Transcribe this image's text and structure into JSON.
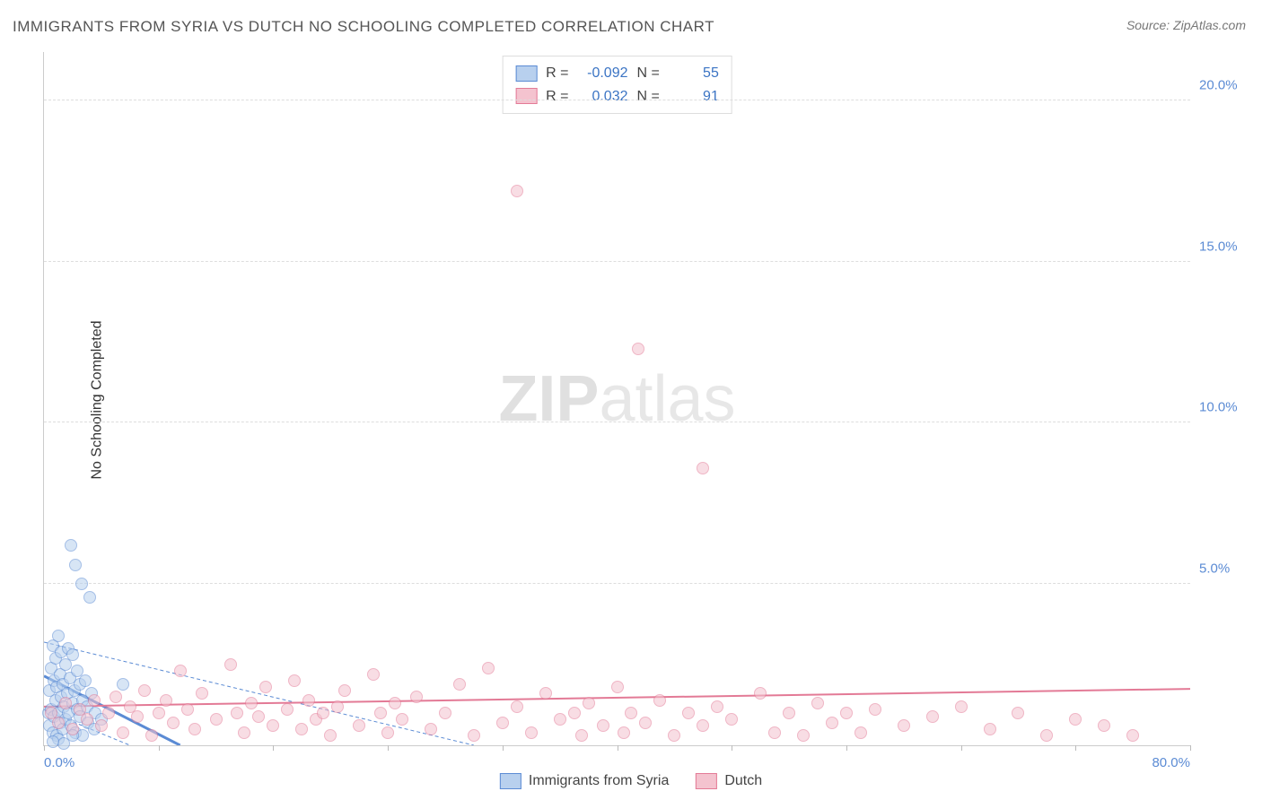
{
  "title": "IMMIGRANTS FROM SYRIA VS DUTCH NO SCHOOLING COMPLETED CORRELATION CHART",
  "source": "Source: ZipAtlas.com",
  "ylabel": "No Schooling Completed",
  "watermark_bold": "ZIP",
  "watermark_rest": "atlas",
  "chart": {
    "type": "scatter",
    "background_color": "#ffffff",
    "grid_color": "#dddddd",
    "axis_color": "#cccccc",
    "tick_label_color": "#5b8bd4",
    "xlim": [
      0,
      80
    ],
    "ylim": [
      0,
      21.5
    ],
    "yticks": [
      {
        "v": 5.0,
        "label": "5.0%"
      },
      {
        "v": 10.0,
        "label": "10.0%"
      },
      {
        "v": 15.0,
        "label": "15.0%"
      },
      {
        "v": 20.0,
        "label": "20.0%"
      }
    ],
    "xticks": [
      {
        "v": 0.0,
        "label": "0.0%"
      },
      {
        "v": 8.0,
        "label": ""
      },
      {
        "v": 16.0,
        "label": ""
      },
      {
        "v": 24.0,
        "label": ""
      },
      {
        "v": 32.0,
        "label": ""
      },
      {
        "v": 40.0,
        "label": ""
      },
      {
        "v": 48.0,
        "label": ""
      },
      {
        "v": 56.0,
        "label": ""
      },
      {
        "v": 64.0,
        "label": ""
      },
      {
        "v": 72.0,
        "label": ""
      },
      {
        "v": 80.0,
        "label": "80.0%"
      }
    ],
    "marker_radius": 7,
    "series": [
      {
        "name": "Immigrants from Syria",
        "fill": "#b8d0ee",
        "stroke": "#5b8bd4",
        "fill_opacity": 0.55,
        "trend": {
          "y_at_x0": 2.15,
          "y_at_xmax": 0.0,
          "x_end": 9.5,
          "width": 3
        },
        "ci_upper": {
          "y_at_x0": 3.2,
          "y_at_xmax": 0.0,
          "x_end": 30
        },
        "ci_lower": {
          "y_at_x0": 1.1,
          "y_at_xmax": 0.0,
          "x_end": 6
        },
        "points": [
          [
            0.3,
            1.0
          ],
          [
            0.4,
            1.7
          ],
          [
            0.4,
            0.6
          ],
          [
            0.5,
            2.4
          ],
          [
            0.5,
            1.1
          ],
          [
            0.6,
            3.1
          ],
          [
            0.6,
            0.4
          ],
          [
            0.7,
            2.0
          ],
          [
            0.7,
            0.9
          ],
          [
            0.8,
            1.4
          ],
          [
            0.8,
            2.7
          ],
          [
            0.9,
            0.3
          ],
          [
            0.9,
            1.8
          ],
          [
            1.0,
            1.0
          ],
          [
            1.0,
            3.4
          ],
          [
            1.1,
            2.2
          ],
          [
            1.1,
            0.7
          ],
          [
            1.2,
            1.5
          ],
          [
            1.2,
            2.9
          ],
          [
            1.3,
            0.5
          ],
          [
            1.3,
            1.9
          ],
          [
            1.4,
            1.2
          ],
          [
            1.5,
            2.5
          ],
          [
            1.5,
            0.8
          ],
          [
            1.6,
            1.6
          ],
          [
            1.7,
            3.0
          ],
          [
            1.7,
            1.0
          ],
          [
            1.8,
            2.1
          ],
          [
            1.9,
            0.6
          ],
          [
            2.0,
            1.3
          ],
          [
            2.0,
            2.8
          ],
          [
            2.1,
            1.7
          ],
          [
            2.2,
            0.4
          ],
          [
            2.3,
            2.3
          ],
          [
            2.3,
            1.1
          ],
          [
            2.5,
            0.9
          ],
          [
            2.5,
            1.9
          ],
          [
            2.7,
            1.4
          ],
          [
            2.7,
            0.3
          ],
          [
            2.9,
            2.0
          ],
          [
            3.0,
            1.2
          ],
          [
            3.1,
            0.7
          ],
          [
            3.3,
            1.6
          ],
          [
            3.5,
            0.5
          ],
          [
            3.6,
            1.0
          ],
          [
            4.0,
            0.8
          ],
          [
            1.9,
            6.2
          ],
          [
            2.2,
            5.6
          ],
          [
            2.6,
            5.0
          ],
          [
            3.2,
            4.6
          ],
          [
            1.0,
            0.2
          ],
          [
            1.4,
            0.05
          ],
          [
            0.6,
            0.1
          ],
          [
            2.0,
            0.3
          ],
          [
            5.5,
            1.9
          ]
        ]
      },
      {
        "name": "Dutch",
        "fill": "#f4c3cf",
        "stroke": "#e37a96",
        "fill_opacity": 0.55,
        "trend": {
          "y_at_x0": 1.2,
          "y_at_xmax": 1.75,
          "x_end": 80,
          "width": 2
        },
        "points": [
          [
            0.5,
            1.0
          ],
          [
            1.0,
            0.7
          ],
          [
            1.5,
            1.3
          ],
          [
            2.0,
            0.5
          ],
          [
            2.5,
            1.1
          ],
          [
            3.0,
            0.8
          ],
          [
            3.5,
            1.4
          ],
          [
            4.0,
            0.6
          ],
          [
            4.5,
            1.0
          ],
          [
            5.0,
            1.5
          ],
          [
            5.5,
            0.4
          ],
          [
            6.0,
            1.2
          ],
          [
            6.5,
            0.9
          ],
          [
            7.0,
            1.7
          ],
          [
            7.5,
            0.3
          ],
          [
            8.0,
            1.0
          ],
          [
            8.5,
            1.4
          ],
          [
            9.0,
            0.7
          ],
          [
            9.5,
            2.3
          ],
          [
            10.0,
            1.1
          ],
          [
            10.5,
            0.5
          ],
          [
            11.0,
            1.6
          ],
          [
            12.0,
            0.8
          ],
          [
            13.0,
            2.5
          ],
          [
            13.5,
            1.0
          ],
          [
            14.0,
            0.4
          ],
          [
            14.5,
            1.3
          ],
          [
            15.0,
            0.9
          ],
          [
            15.5,
            1.8
          ],
          [
            16.0,
            0.6
          ],
          [
            17.0,
            1.1
          ],
          [
            17.5,
            2.0
          ],
          [
            18.0,
            0.5
          ],
          [
            18.5,
            1.4
          ],
          [
            19.0,
            0.8
          ],
          [
            19.5,
            1.0
          ],
          [
            20.0,
            0.3
          ],
          [
            20.5,
            1.2
          ],
          [
            21.0,
            1.7
          ],
          [
            22.0,
            0.6
          ],
          [
            23.0,
            2.2
          ],
          [
            23.5,
            1.0
          ],
          [
            24.0,
            0.4
          ],
          [
            24.5,
            1.3
          ],
          [
            25.0,
            0.8
          ],
          [
            26.0,
            1.5
          ],
          [
            27.0,
            0.5
          ],
          [
            28.0,
            1.0
          ],
          [
            29.0,
            1.9
          ],
          [
            30.0,
            0.3
          ],
          [
            31.0,
            2.4
          ],
          [
            32.0,
            0.7
          ],
          [
            33.0,
            1.2
          ],
          [
            34.0,
            0.4
          ],
          [
            35.0,
            1.6
          ],
          [
            36.0,
            0.8
          ],
          [
            37.0,
            1.0
          ],
          [
            37.5,
            0.3
          ],
          [
            38.0,
            1.3
          ],
          [
            39.0,
            0.6
          ],
          [
            40.0,
            1.8
          ],
          [
            40.5,
            0.4
          ],
          [
            41.0,
            1.0
          ],
          [
            42.0,
            0.7
          ],
          [
            43.0,
            1.4
          ],
          [
            44.0,
            0.3
          ],
          [
            45.0,
            1.0
          ],
          [
            46.0,
            0.6
          ],
          [
            47.0,
            1.2
          ],
          [
            48.0,
            0.8
          ],
          [
            50.0,
            1.6
          ],
          [
            51.0,
            0.4
          ],
          [
            52.0,
            1.0
          ],
          [
            53.0,
            0.3
          ],
          [
            54.0,
            1.3
          ],
          [
            55.0,
            0.7
          ],
          [
            56.0,
            1.0
          ],
          [
            57.0,
            0.4
          ],
          [
            58.0,
            1.1
          ],
          [
            60.0,
            0.6
          ],
          [
            62.0,
            0.9
          ],
          [
            64.0,
            1.2
          ],
          [
            66.0,
            0.5
          ],
          [
            68.0,
            1.0
          ],
          [
            70.0,
            0.3
          ],
          [
            72.0,
            0.8
          ],
          [
            74.0,
            0.6
          ],
          [
            76.0,
            0.3
          ],
          [
            33.0,
            17.2
          ],
          [
            41.5,
            12.3
          ],
          [
            46.0,
            8.6
          ]
        ]
      }
    ]
  },
  "stats_legend": {
    "rows": [
      {
        "swatch_fill": "#b8d0ee",
        "swatch_stroke": "#5b8bd4",
        "r_label": "R =",
        "r_val": "-0.092",
        "n_label": "N =",
        "n_val": "55"
      },
      {
        "swatch_fill": "#f4c3cf",
        "swatch_stroke": "#e37a96",
        "r_label": "R =",
        "r_val": "0.032",
        "n_label": "N =",
        "n_val": "91"
      }
    ]
  },
  "bottom_legend": {
    "items": [
      {
        "swatch_fill": "#b8d0ee",
        "swatch_stroke": "#5b8bd4",
        "label": "Immigrants from Syria"
      },
      {
        "swatch_fill": "#f4c3cf",
        "swatch_stroke": "#e37a96",
        "label": "Dutch"
      }
    ]
  }
}
